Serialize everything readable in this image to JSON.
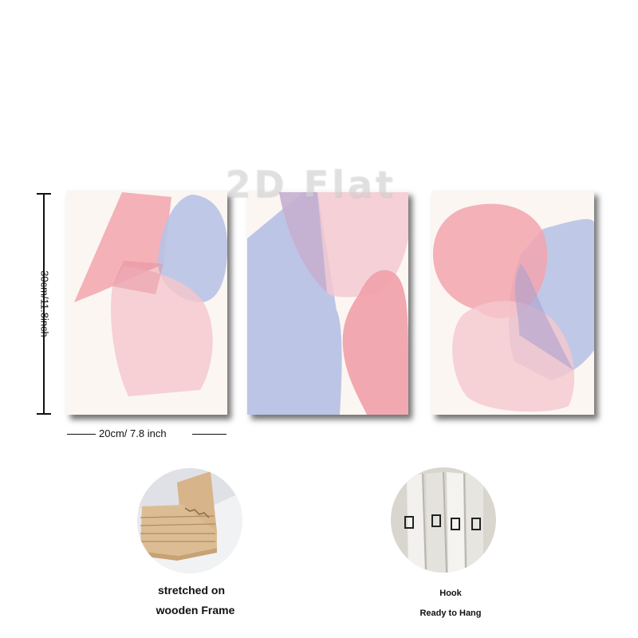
{
  "watermark": "2D Flat",
  "dimensions": {
    "height_label": "30cm/11.8inch",
    "width_label": "20cm/ 7.8 inch"
  },
  "features": {
    "frame_caption_line1": "stretched on",
    "frame_caption_line2": "wooden Frame",
    "hook_caption_line1": "Hook",
    "hook_caption_line2": "Ready to Hang"
  },
  "colors": {
    "canvas_bg": "#fbf6f2",
    "pink": "#f2a6b0",
    "light_pink": "#f6cfd4",
    "lavender": "#b9c4e8",
    "wood": "#d9b98f"
  }
}
